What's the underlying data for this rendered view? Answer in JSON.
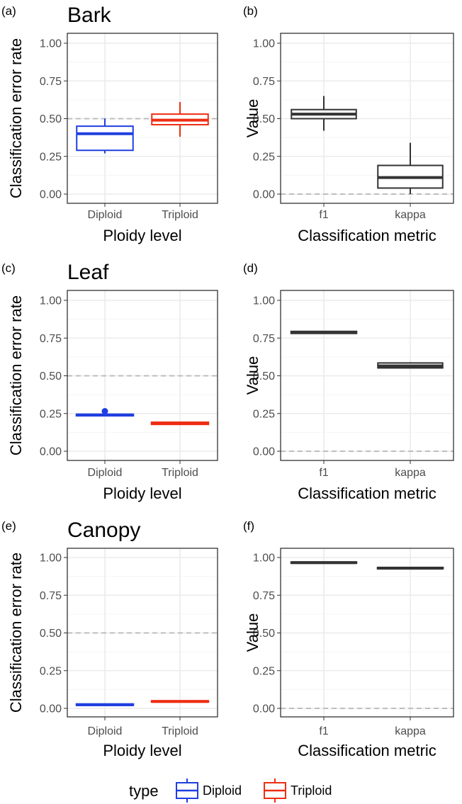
{
  "chart_data": [
    {
      "type": "box",
      "tag": "(a)",
      "title": "Bark",
      "xlabel": "Ploidy level",
      "ylabel": "Classification error rate",
      "ylim": [
        0,
        1
      ],
      "yticks": [
        "0.00",
        "0.25",
        "0.50",
        "0.75",
        "1.00"
      ],
      "reference_line": 0.5,
      "categories": [
        "Diploid",
        "Triploid"
      ],
      "boxes": [
        {
          "category": "Diploid",
          "series": "Diploid",
          "min": 0.27,
          "q1": 0.29,
          "median": 0.4,
          "q3": 0.45,
          "max": 0.5,
          "outliers": []
        },
        {
          "category": "Triploid",
          "series": "Triploid",
          "min": 0.38,
          "q1": 0.46,
          "median": 0.49,
          "q3": 0.53,
          "max": 0.61,
          "outliers": []
        }
      ]
    },
    {
      "type": "box",
      "tag": "(b)",
      "title": "",
      "xlabel": "Classification metric",
      "ylabel": "Value",
      "ylim": [
        0,
        1
      ],
      "yticks": [
        "0.00",
        "0.25",
        "0.50",
        "0.75",
        "1.00"
      ],
      "reference_line": 0,
      "categories": [
        "f1",
        "kappa"
      ],
      "boxes": [
        {
          "category": "f1",
          "series": "metric",
          "min": 0.42,
          "q1": 0.5,
          "median": 0.53,
          "q3": 0.56,
          "max": 0.65,
          "outliers": []
        },
        {
          "category": "kappa",
          "series": "metric",
          "min": 0.0,
          "q1": 0.04,
          "median": 0.11,
          "q3": 0.19,
          "max": 0.34,
          "outliers": []
        }
      ]
    },
    {
      "type": "box",
      "tag": "(c)",
      "title": "Leaf",
      "xlabel": "Ploidy level",
      "ylabel": "Classification error rate",
      "ylim": [
        0,
        1
      ],
      "yticks": [
        "0.00",
        "0.25",
        "0.50",
        "0.75",
        "1.00"
      ],
      "reference_line": 0.5,
      "categories": [
        "Diploid",
        "Triploid"
      ],
      "boxes": [
        {
          "category": "Diploid",
          "series": "Diploid",
          "min": 0.237,
          "q1": 0.237,
          "median": 0.24,
          "q3": 0.243,
          "max": 0.243,
          "outliers": [
            0.265
          ]
        },
        {
          "category": "Triploid",
          "series": "Triploid",
          "min": 0.178,
          "q1": 0.18,
          "median": 0.185,
          "q3": 0.19,
          "max": 0.192,
          "outliers": []
        }
      ]
    },
    {
      "type": "box",
      "tag": "(d)",
      "title": "",
      "xlabel": "Classification metric",
      "ylabel": "Value",
      "ylim": [
        0,
        1
      ],
      "yticks": [
        "0.00",
        "0.25",
        "0.50",
        "0.75",
        "1.00"
      ],
      "reference_line": 0,
      "categories": [
        "f1",
        "kappa"
      ],
      "boxes": [
        {
          "category": "f1",
          "series": "metric",
          "min": 0.78,
          "q1": 0.783,
          "median": 0.787,
          "q3": 0.792,
          "max": 0.795,
          "outliers": []
        },
        {
          "category": "kappa",
          "series": "metric",
          "min": 0.55,
          "q1": 0.552,
          "median": 0.565,
          "q3": 0.585,
          "max": 0.59,
          "outliers": []
        }
      ]
    },
    {
      "type": "box",
      "tag": "(e)",
      "title": "Canopy",
      "xlabel": "Ploidy level",
      "ylabel": "Classification error rate",
      "ylim": [
        0,
        1
      ],
      "yticks": [
        "0.00",
        "0.25",
        "0.50",
        "0.75",
        "1.00"
      ],
      "reference_line": 0.5,
      "categories": [
        "Diploid",
        "Triploid"
      ],
      "boxes": [
        {
          "category": "Diploid",
          "series": "Diploid",
          "min": 0.02,
          "q1": 0.022,
          "median": 0.024,
          "q3": 0.027,
          "max": 0.029,
          "outliers": []
        },
        {
          "category": "Triploid",
          "series": "Triploid",
          "min": 0.043,
          "q1": 0.044,
          "median": 0.046,
          "q3": 0.048,
          "max": 0.05,
          "outliers": []
        }
      ]
    },
    {
      "type": "box",
      "tag": "(f)",
      "title": "",
      "xlabel": "Classification metric",
      "ylabel": "Value",
      "ylim": [
        0,
        1
      ],
      "yticks": [
        "0.00",
        "0.25",
        "0.50",
        "0.75",
        "1.00"
      ],
      "reference_line": 0,
      "categories": [
        "f1",
        "kappa"
      ],
      "boxes": [
        {
          "category": "f1",
          "series": "metric",
          "min": 0.962,
          "q1": 0.964,
          "median": 0.966,
          "q3": 0.968,
          "max": 0.97,
          "outliers": []
        },
        {
          "category": "kappa",
          "series": "metric",
          "min": 0.925,
          "q1": 0.927,
          "median": 0.929,
          "q3": 0.932,
          "max": 0.935,
          "outliers": []
        }
      ]
    }
  ],
  "legend": {
    "title": "type",
    "position": "bottom",
    "items": [
      {
        "label": "Diploid",
        "color": "#1f3fe0"
      },
      {
        "label": "Triploid",
        "color": "#ee2d14"
      }
    ]
  },
  "colors": {
    "Diploid": "#1f3fe0",
    "Triploid": "#ee2d14",
    "metric": "#333333",
    "grid_major": "#ebebeb",
    "grid_minor": "#f5f5f5",
    "reference_line": "#bdbdbd",
    "panel_border": "#333333"
  },
  "grid": true
}
